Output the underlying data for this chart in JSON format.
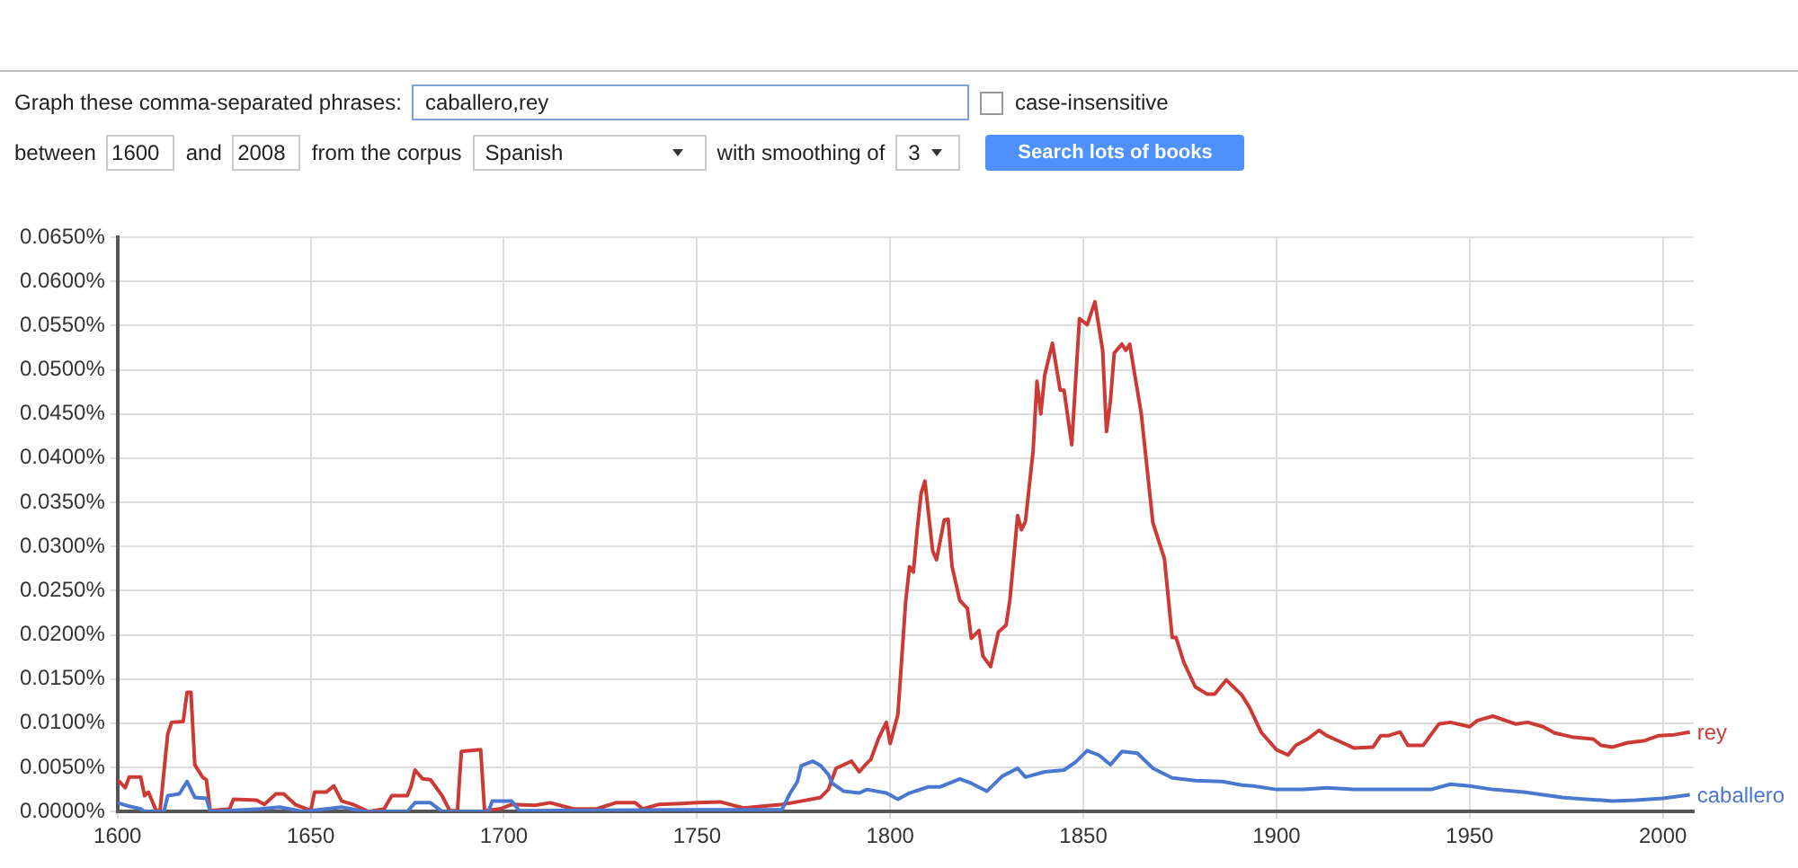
{
  "chart_data": {
    "type": "line",
    "annotations": [
      "Graph these comma-separated phrases:",
      "caballero,rey",
      "case-insensitive",
      "between",
      "1600",
      "and",
      "2008",
      "from the corpus",
      "Spanish",
      "with smoothing of",
      "3",
      "Search lots of books"
    ],
    "xlim": [
      1600,
      2008
    ],
    "xticks": [
      1600,
      1650,
      1700,
      1750,
      1800,
      1850,
      1900,
      1950,
      2000
    ],
    "ylim": [
      0,
      0.065
    ],
    "yticks": [
      {
        "value": 0,
        "label": "0.0000%"
      },
      {
        "value": 0.005,
        "label": "0.0050%"
      },
      {
        "value": 0.01,
        "label": "0.0100%"
      },
      {
        "value": 0.015,
        "label": "0.0150%"
      },
      {
        "value": 0.02,
        "label": "0.0200%"
      },
      {
        "value": 0.025,
        "label": "0.0250%"
      },
      {
        "value": 0.03,
        "label": "0.0300%"
      },
      {
        "value": 0.035,
        "label": "0.0350%"
      },
      {
        "value": 0.04,
        "label": "0.0400%"
      },
      {
        "value": 0.045,
        "label": "0.0450%"
      },
      {
        "value": 0.05,
        "label": "0.0500%"
      },
      {
        "value": 0.055,
        "label": "0.0550%"
      },
      {
        "value": 0.06,
        "label": "0.0600%"
      },
      {
        "value": 0.065,
        "label": "0.0650%"
      }
    ],
    "grid": true,
    "series": [
      {
        "name": "caballero",
        "color": "#4a78d0",
        "x": [
          1600,
          1603,
          1606,
          1607,
          1612,
          1613,
          1616,
          1618,
          1620,
          1623,
          1624,
          1637,
          1642,
          1648,
          1658,
          1664,
          1675,
          1677,
          1681,
          1684,
          1696,
          1697,
          1702,
          1704,
          1748,
          1772,
          1774,
          1776,
          1777,
          1780,
          1782,
          1784,
          1785,
          1788,
          1792,
          1794,
          1799,
          1802,
          1805,
          1810,
          1813,
          1818,
          1821,
          1825,
          1829,
          1833,
          1835,
          1840,
          1845,
          1848,
          1851,
          1854,
          1857,
          1860,
          1864,
          1868,
          1873,
          1879,
          1886,
          1891,
          1894,
          1900,
          1907,
          1913,
          1920,
          1929,
          1940,
          1945,
          1950,
          1956,
          1964,
          1974,
          1980,
          1987,
          1993,
          2000,
          2007
        ],
        "values": [
          0.001,
          0.0006,
          0.0003,
          0,
          0,
          0.0018,
          0.002,
          0.0034,
          0.0016,
          0.0015,
          0,
          0.0003,
          0.0005,
          0,
          0.0005,
          0,
          0,
          0.001,
          0.001,
          0,
          0,
          0.0012,
          0.0012,
          0.0001,
          0.0002,
          0.0002,
          0.002,
          0.0034,
          0.0052,
          0.0057,
          0.0052,
          0.0042,
          0.0032,
          0.0023,
          0.0021,
          0.0025,
          0.0021,
          0.0014,
          0.0021,
          0.0028,
          0.0028,
          0.0037,
          0.0032,
          0.0023,
          0.004,
          0.0049,
          0.0039,
          0.0045,
          0.0047,
          0.0056,
          0.0069,
          0.0064,
          0.0053,
          0.0068,
          0.0066,
          0.0049,
          0.0038,
          0.0035,
          0.0034,
          0.003,
          0.0029,
          0.0025,
          0.0025,
          0.0027,
          0.0025,
          0.0025,
          0.0025,
          0.0031,
          0.0029,
          0.0025,
          0.0022,
          0.0016,
          0.0014,
          0.0012,
          0.0013,
          0.0015,
          0.0019
        ]
      },
      {
        "name": "rey",
        "color": "#cc3a36",
        "x": [
          1600,
          1602,
          1603,
          1606,
          1607,
          1608,
          1610,
          1611,
          1613,
          1614,
          1617,
          1618,
          1619,
          1620,
          1622,
          1623,
          1624,
          1629,
          1630,
          1636,
          1638,
          1641,
          1643,
          1646,
          1650,
          1651,
          1654,
          1656,
          1658,
          1661,
          1665,
          1669,
          1671,
          1675,
          1676,
          1677,
          1679,
          1681,
          1684,
          1686,
          1688,
          1689,
          1694,
          1695,
          1699,
          1702,
          1708,
          1712,
          1718,
          1724,
          1729,
          1734,
          1736,
          1740,
          1750,
          1756,
          1762,
          1772,
          1776,
          1782,
          1784,
          1786,
          1790,
          1792,
          1794,
          1795,
          1797,
          1799,
          1800,
          1802,
          1804,
          1805,
          1806,
          1807,
          1808,
          1809,
          1811,
          1812,
          1814,
          1815,
          1816,
          1818,
          1820,
          1821,
          1823,
          1824,
          1826,
          1828,
          1830,
          1831,
          1833,
          1834,
          1835,
          1837,
          1838,
          1839,
          1840,
          1842,
          1844,
          1845,
          1847,
          1849,
          1851,
          1853,
          1855,
          1856,
          1857,
          1858,
          1860,
          1861,
          1862,
          1865,
          1868,
          1871,
          1873,
          1874,
          1876,
          1879,
          1882,
          1884,
          1887,
          1891,
          1893,
          1896,
          1900,
          1903,
          1905,
          1908,
          1911,
          1913,
          1916,
          1920,
          1925,
          1927,
          1929,
          1932,
          1934,
          1938,
          1942,
          1945,
          1950,
          1952,
          1956,
          1962,
          1965,
          1969,
          1972,
          1977,
          1982,
          1984,
          1987,
          1991,
          1995,
          1999,
          2003,
          2007
        ],
        "values": [
          0.0036,
          0.0027,
          0.0039,
          0.0039,
          0.0018,
          0.0022,
          0.0001,
          0.0001,
          0.0088,
          0.0101,
          0.0102,
          0.0135,
          0.0135,
          0.0053,
          0.0039,
          0.0036,
          0.0001,
          0.0003,
          0.0014,
          0.0013,
          0.0008,
          0.002,
          0.002,
          0.0008,
          0.0001,
          0.0022,
          0.0022,
          0.0029,
          0.0012,
          0.0008,
          0,
          0.0003,
          0.0018,
          0.0018,
          0.0029,
          0.0047,
          0.0037,
          0.0036,
          0.0018,
          0.0001,
          0.0001,
          0.0068,
          0.007,
          0.0001,
          0.0003,
          0.0008,
          0.0007,
          0.001,
          0.0003,
          0.0003,
          0.001,
          0.001,
          0.0003,
          0.0008,
          0.001,
          0.0011,
          0.0004,
          0.0008,
          0.0011,
          0.0016,
          0.0025,
          0.0049,
          0.0057,
          0.0045,
          0.0055,
          0.0059,
          0.0083,
          0.0101,
          0.0077,
          0.011,
          0.0237,
          0.0277,
          0.0271,
          0.0319,
          0.036,
          0.0374,
          0.0295,
          0.0285,
          0.033,
          0.0331,
          0.0278,
          0.0239,
          0.023,
          0.0196,
          0.0205,
          0.0176,
          0.0164,
          0.0203,
          0.0211,
          0.024,
          0.0335,
          0.0319,
          0.0328,
          0.0408,
          0.0487,
          0.045,
          0.0494,
          0.053,
          0.0477,
          0.0477,
          0.0415,
          0.0558,
          0.0551,
          0.0577,
          0.0522,
          0.043,
          0.0464,
          0.0519,
          0.0529,
          0.0522,
          0.0529,
          0.045,
          0.0327,
          0.0286,
          0.0197,
          0.0197,
          0.0169,
          0.0141,
          0.0133,
          0.0133,
          0.0149,
          0.0132,
          0.0118,
          0.009,
          0.007,
          0.0064,
          0.0075,
          0.0082,
          0.0092,
          0.0086,
          0.008,
          0.0072,
          0.0073,
          0.0086,
          0.0086,
          0.009,
          0.0075,
          0.0075,
          0.0099,
          0.0101,
          0.0096,
          0.0103,
          0.0108,
          0.0099,
          0.0101,
          0.0096,
          0.0089,
          0.0084,
          0.0082,
          0.0075,
          0.0073,
          0.0078,
          0.008,
          0.0086,
          0.0087,
          0.009
        ]
      }
    ]
  }
}
